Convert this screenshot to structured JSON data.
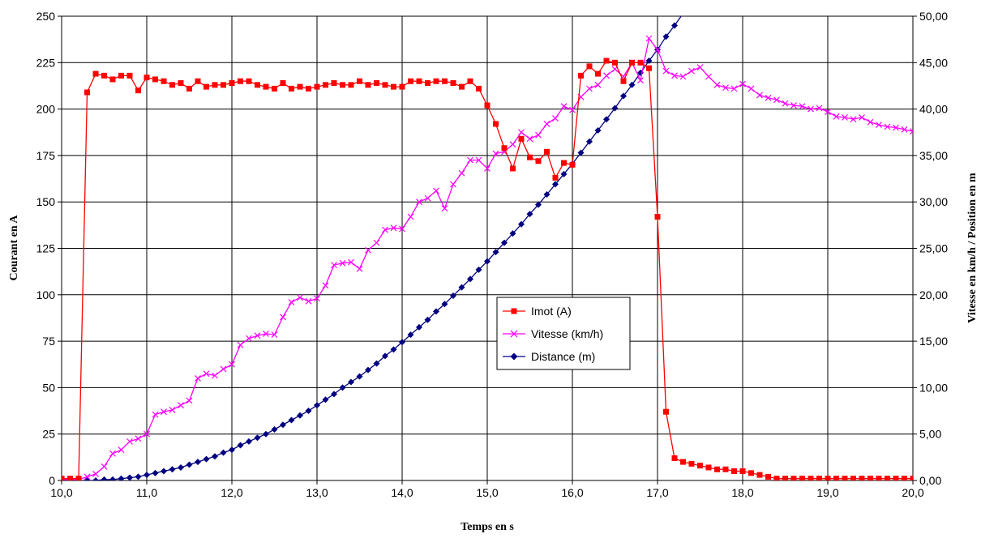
{
  "chart_data": {
    "type": "line",
    "xlabel": "Temps en s",
    "ylabel_left": "Courant en A",
    "ylabel_right": "Vitesse en km/h / Position en m",
    "xlim": [
      10,
      20
    ],
    "ylim_left": [
      0,
      250
    ],
    "ylim_right": [
      0,
      50
    ],
    "x_ticks": [
      10,
      11,
      12,
      13,
      14,
      15,
      16,
      17,
      18,
      19,
      20
    ],
    "x_tick_labels": [
      "10,0",
      "11,0",
      "12,0",
      "13,0",
      "14,0",
      "15,0",
      "16,0",
      "17,0",
      "18,0",
      "19,0",
      "20,0"
    ],
    "y_left_ticks": [
      0,
      25,
      50,
      75,
      100,
      125,
      150,
      175,
      200,
      225,
      250
    ],
    "y_left_tick_labels": [
      "0",
      "25",
      "50",
      "75",
      "100",
      "125",
      "150",
      "175",
      "200",
      "225",
      "250"
    ],
    "y_right_ticks": [
      0,
      5,
      10,
      15,
      20,
      25,
      30,
      35,
      40,
      45,
      50
    ],
    "y_right_tick_labels": [
      "0,00",
      "5,00",
      "10,00",
      "15,00",
      "20,00",
      "25,00",
      "30,00",
      "35,00",
      "40,00",
      "45,00",
      "50,00"
    ],
    "grid": true,
    "legend_position": "center",
    "series": [
      {
        "name": "Imot (A)",
        "axis": "left",
        "color": "#ff0000",
        "marker": "square",
        "x": [
          10.0,
          10.1,
          10.2,
          10.3,
          10.4,
          10.5,
          10.6,
          10.7,
          10.8,
          10.9,
          11.0,
          11.1,
          11.2,
          11.3,
          11.4,
          11.5,
          11.6,
          11.7,
          11.8,
          11.9,
          12.0,
          12.1,
          12.2,
          12.3,
          12.4,
          12.5,
          12.6,
          12.7,
          12.8,
          12.9,
          13.0,
          13.1,
          13.2,
          13.3,
          13.4,
          13.5,
          13.6,
          13.7,
          13.8,
          13.9,
          14.0,
          14.1,
          14.2,
          14.3,
          14.4,
          14.5,
          14.6,
          14.7,
          14.8,
          14.9,
          15.0,
          15.1,
          15.2,
          15.3,
          15.4,
          15.5,
          15.6,
          15.7,
          15.8,
          15.9,
          16.0,
          16.1,
          16.2,
          16.3,
          16.4,
          16.5,
          16.6,
          16.7,
          16.8,
          16.9,
          17.0,
          17.1,
          17.2,
          17.3,
          17.4,
          17.5,
          17.6,
          17.7,
          17.8,
          17.9,
          18.0,
          18.1,
          18.2,
          18.3,
          18.4,
          18.5,
          18.6,
          18.7,
          18.8,
          18.9,
          19.0,
          19.1,
          19.2,
          19.3,
          19.4,
          19.5,
          19.6,
          19.7,
          19.8,
          19.9,
          20.0
        ],
        "values": [
          1,
          1,
          1,
          209,
          219,
          218,
          216,
          218,
          218,
          210,
          217,
          216,
          215,
          213,
          214,
          211,
          215,
          212,
          213,
          213,
          214,
          215,
          215,
          213,
          212,
          211,
          214,
          211,
          212,
          211,
          212,
          213,
          214,
          213,
          213,
          215,
          213,
          214,
          213,
          212,
          212,
          215,
          215,
          214,
          215,
          215,
          214,
          212,
          215,
          211,
          202,
          192,
          179,
          168,
          184,
          174,
          172,
          177,
          163,
          171,
          170,
          218,
          223,
          219,
          226,
          225,
          215,
          225,
          225,
          222,
          142,
          37,
          12,
          10,
          9,
          8,
          7,
          6,
          6,
          5,
          5,
          4,
          3,
          2,
          1,
          1,
          1,
          1,
          1,
          1,
          1,
          1,
          1,
          1,
          1,
          1,
          1,
          1,
          1,
          1,
          1
        ]
      },
      {
        "name": "Vitesse (km/h)",
        "axis": "right",
        "color": "#ff00ff",
        "marker": "cross",
        "x": [
          10.0,
          10.1,
          10.2,
          10.3,
          10.4,
          10.5,
          10.6,
          10.7,
          10.8,
          10.9,
          11.0,
          11.1,
          11.2,
          11.3,
          11.4,
          11.5,
          11.6,
          11.7,
          11.8,
          11.9,
          12.0,
          12.1,
          12.2,
          12.3,
          12.4,
          12.5,
          12.6,
          12.7,
          12.8,
          12.9,
          13.0,
          13.1,
          13.2,
          13.3,
          13.4,
          13.5,
          13.6,
          13.7,
          13.8,
          13.9,
          14.0,
          14.1,
          14.2,
          14.3,
          14.4,
          14.5,
          14.6,
          14.7,
          14.8,
          14.9,
          15.0,
          15.1,
          15.2,
          15.3,
          15.4,
          15.5,
          15.6,
          15.7,
          15.8,
          15.9,
          16.0,
          16.1,
          16.2,
          16.3,
          16.4,
          16.5,
          16.6,
          16.7,
          16.8,
          16.9,
          17.0,
          17.1,
          17.2,
          17.3,
          17.4,
          17.5,
          17.6,
          17.7,
          17.8,
          17.9,
          18.0,
          18.1,
          18.2,
          18.3,
          18.4,
          18.5,
          18.6,
          18.7,
          18.8,
          18.9,
          19.0,
          19.1,
          19.2,
          19.3,
          19.4,
          19.5,
          19.6,
          19.7,
          19.8,
          19.9,
          20.0
        ],
        "values": [
          0.1,
          0.1,
          0.1,
          0.4,
          0.7,
          1.5,
          2.9,
          3.3,
          4.2,
          4.5,
          5.0,
          7.1,
          7.4,
          7.6,
          8.1,
          8.6,
          11.0,
          11.5,
          11.3,
          12.0,
          12.5,
          14.6,
          15.3,
          15.6,
          15.8,
          15.7,
          17.6,
          19.2,
          19.7,
          19.3,
          19.6,
          21.0,
          23.2,
          23.4,
          23.5,
          22.8,
          24.8,
          25.6,
          27.0,
          27.2,
          27.1,
          28.4,
          30.0,
          30.4,
          31.2,
          29.3,
          31.9,
          33.1,
          34.5,
          34.5,
          33.6,
          35.2,
          35.4,
          36.2,
          37.5,
          36.8,
          37.2,
          38.4,
          39.0,
          40.3,
          39.9,
          41.3,
          42.2,
          42.6,
          43.6,
          44.3,
          43.5,
          45.0,
          43.1,
          47.6,
          46.4,
          44.1,
          43.6,
          43.5,
          44.1,
          44.5,
          43.5,
          42.6,
          42.3,
          42.2,
          42.7,
          42.2,
          41.5,
          41.2,
          41.0,
          40.6,
          40.4,
          40.3,
          40.0,
          40.1,
          39.7,
          39.2,
          39.1,
          38.9,
          39.1,
          38.6,
          38.3,
          38.1,
          38.0,
          37.8,
          37.6
        ]
      },
      {
        "name": "Distance (m)",
        "axis": "right",
        "color": "#000080",
        "marker": "diamond",
        "x": [
          10.0,
          10.1,
          10.2,
          10.3,
          10.4,
          10.5,
          10.6,
          10.7,
          10.8,
          10.9,
          11.0,
          11.1,
          11.2,
          11.3,
          11.4,
          11.5,
          11.6,
          11.7,
          11.8,
          11.9,
          12.0,
          12.1,
          12.2,
          12.3,
          12.4,
          12.5,
          12.6,
          12.7,
          12.8,
          12.9,
          13.0,
          13.1,
          13.2,
          13.3,
          13.4,
          13.5,
          13.6,
          13.7,
          13.8,
          13.9,
          14.0,
          14.1,
          14.2,
          14.3,
          14.4,
          14.5,
          14.6,
          14.7,
          14.8,
          14.9,
          15.0,
          15.1,
          15.2,
          15.3,
          15.4,
          15.5,
          15.6,
          15.7,
          15.8,
          15.9,
          16.0,
          16.1,
          16.2,
          16.3,
          16.4,
          16.5,
          16.6,
          16.7,
          16.8,
          16.9,
          17.0,
          17.1,
          17.2,
          17.3,
          17.4
        ],
        "values": [
          0.0,
          0.0,
          0.0,
          0.0,
          0.0,
          0.1,
          0.1,
          0.2,
          0.3,
          0.4,
          0.6,
          0.8,
          1.0,
          1.2,
          1.4,
          1.7,
          2.0,
          2.3,
          2.6,
          3.0,
          3.3,
          3.8,
          4.2,
          4.6,
          5.0,
          5.5,
          6.0,
          6.5,
          7.0,
          7.5,
          8.1,
          8.7,
          9.3,
          10.0,
          10.6,
          11.2,
          11.9,
          12.6,
          13.4,
          14.1,
          14.9,
          15.7,
          16.5,
          17.3,
          18.2,
          19.0,
          19.9,
          20.8,
          21.7,
          22.7,
          23.6,
          24.6,
          25.6,
          26.6,
          27.6,
          28.7,
          29.7,
          30.8,
          31.9,
          33.0,
          34.1,
          35.3,
          36.5,
          37.7,
          38.9,
          40.1,
          41.4,
          42.6,
          43.9,
          45.2,
          46.4,
          47.8,
          49.0,
          50.3,
          51.5
        ]
      }
    ]
  }
}
